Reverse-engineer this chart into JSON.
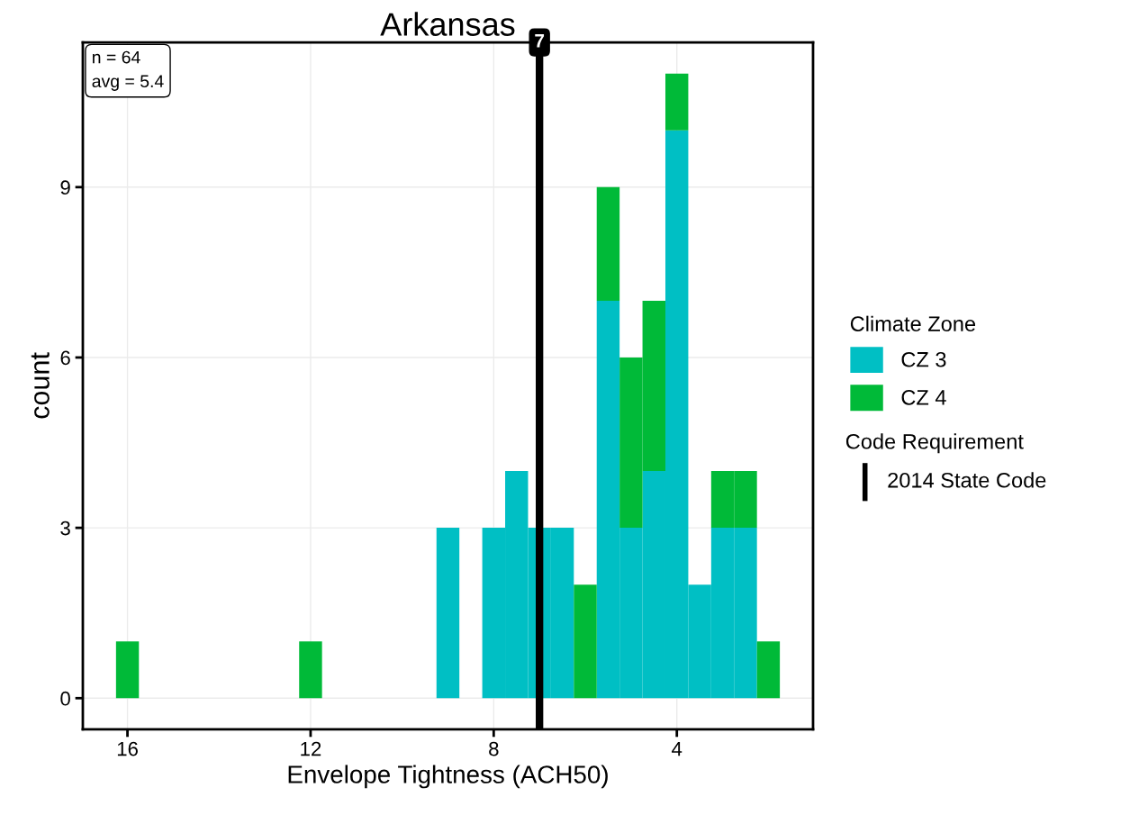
{
  "chart_data": {
    "type": "bar",
    "title": "Arkansas",
    "xlabel": "Envelope Tightness (ACH50)",
    "ylabel": "count",
    "legend_title": "Climate Zone",
    "x": [
      2,
      2.5,
      3,
      3.5,
      4,
      4.5,
      5,
      5.5,
      6,
      6.5,
      7,
      7.5,
      8,
      8.5,
      9,
      9.5,
      10,
      10.5,
      11,
      11.5,
      12,
      12.5,
      13,
      13.5,
      14,
      14.5,
      15,
      15.5,
      16
    ],
    "stacked": true,
    "series": [
      {
        "name": "CZ 3",
        "color": "#00bfc4",
        "values": [
          0,
          3,
          3,
          2,
          10,
          4,
          3,
          7,
          0,
          3,
          3,
          4,
          3,
          0,
          3,
          0,
          0,
          0,
          0,
          0,
          0,
          0,
          0,
          0,
          0,
          0,
          0,
          0,
          0
        ]
      },
      {
        "name": "CZ 4",
        "color": "#00ba38",
        "values": [
          1,
          1,
          1,
          0,
          1,
          3,
          3,
          2,
          2,
          0,
          0,
          0,
          0,
          0,
          0,
          0,
          0,
          0,
          0,
          0,
          1,
          0,
          0,
          0,
          0,
          0,
          0,
          0,
          1
        ]
      }
    ],
    "xlim": [
      16.975,
      1.025
    ],
    "xticks": [
      16,
      12,
      8,
      4
    ],
    "ylim": [
      -0.55,
      11.55
    ],
    "yticks": [
      0,
      3,
      6,
      9
    ],
    "grid": true,
    "legend": "right",
    "ref_lines": [
      {
        "axis": "x",
        "value": 7,
        "label": "7",
        "color": "#000000"
      }
    ],
    "annotations": [
      "n = 64",
      "avg = 5.4",
      "Code Requirement",
      "2014 State Code"
    ]
  }
}
